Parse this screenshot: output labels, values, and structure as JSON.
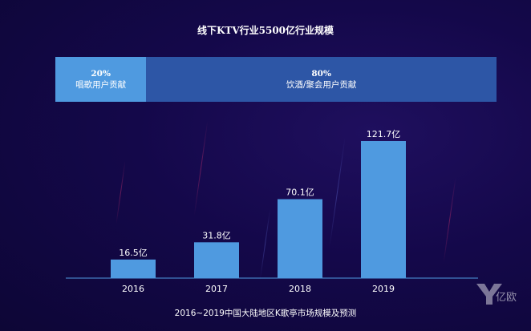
{
  "title": "线下KTV行业5500亿行业规模",
  "share": [
    {
      "pct": "20%",
      "label": "唱歌用户贡献",
      "value": 20
    },
    {
      "pct": "80%",
      "label": "饮酒/聚会用户贡献",
      "value": 80
    }
  ],
  "chart_data": {
    "type": "bar",
    "categories": [
      "2016",
      "2017",
      "2018",
      "2019"
    ],
    "values": [
      16.5,
      31.8,
      70.1,
      121.7
    ],
    "data_labels": [
      "16.5亿",
      "31.8亿",
      "70.1亿",
      "121.7亿"
    ],
    "title": "",
    "xlabel": "",
    "ylabel": "",
    "ylim": [
      0,
      121.7
    ],
    "grid": false,
    "bar_color": "#4f9ae0"
  },
  "caption": "2016~2019中国大陆地区K歌亭市场规模及预测",
  "logo_text": "亿欧"
}
